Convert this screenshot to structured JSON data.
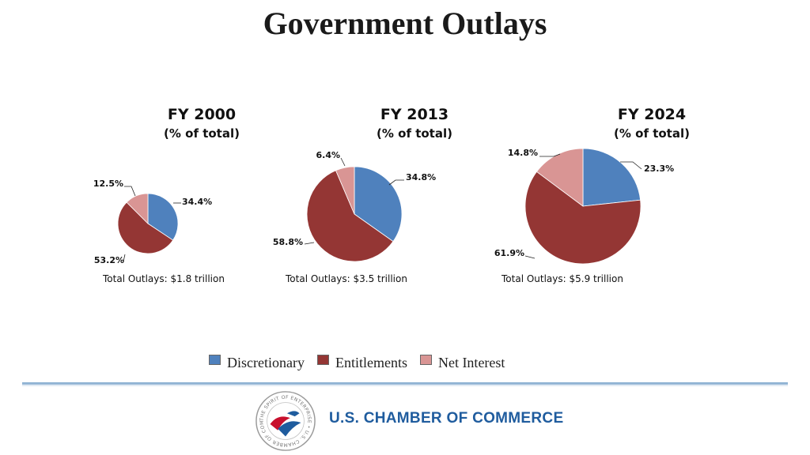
{
  "title": "Government Outlays",
  "colors": {
    "discretionary": "#4f81bd",
    "entitlements": "#943634",
    "net_interest": "#d99594"
  },
  "chart_data": [
    {
      "type": "pie",
      "title": "FY 2000",
      "subtitle": "(% of total)",
      "labels": [
        "Discretionary",
        "Entitlements",
        "Net Interest"
      ],
      "values": [
        34.4,
        53.2,
        12.5
      ],
      "value_labels": [
        "34.4%",
        "53.2%",
        "12.5%"
      ],
      "footnote": "Total Outlays: $1.8 trillion"
    },
    {
      "type": "pie",
      "title": "FY 2013",
      "subtitle": "(% of total)",
      "labels": [
        "Discretionary",
        "Entitlements",
        "Net Interest"
      ],
      "values": [
        34.8,
        58.8,
        6.4
      ],
      "value_labels": [
        "34.8%",
        "58.8%",
        "6.4%"
      ],
      "footnote": "Total Outlays: $3.5 trillion"
    },
    {
      "type": "pie",
      "title": "FY 2024",
      "subtitle": "(% of total)",
      "labels": [
        "Discretionary",
        "Entitlements",
        "Net Interest"
      ],
      "values": [
        23.3,
        61.9,
        14.8
      ],
      "value_labels": [
        "23.3%",
        "61.9%",
        "14.8%"
      ],
      "footnote": "Total Outlays: $5.9 trillion"
    }
  ],
  "legend": [
    "Discretionary",
    "Entitlements",
    "Net Interest"
  ],
  "footer": {
    "brand": "U.S. CHAMBER OF COMMERCE",
    "seal_text": "THE SPIRIT OF ENTERPRISE • U.S. CHAMBER OF COMMERCE •"
  }
}
